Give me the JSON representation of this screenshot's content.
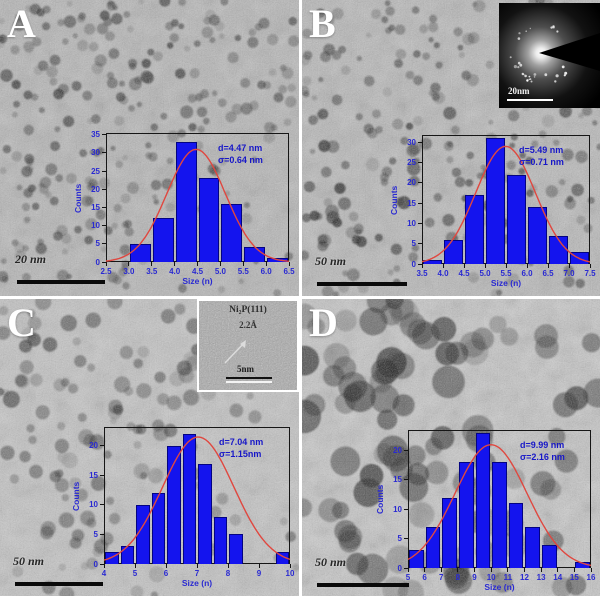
{
  "figure": {
    "colors": {
      "bar_fill": "#1414ee",
      "fit_curve": "#e0473f",
      "axis_text": "#2a2ad2",
      "annotation_text": "#1717c8",
      "axis_line": "#161616",
      "scale_bar": "#0a0a0a"
    },
    "panels": [
      {
        "id": "A",
        "label": "A",
        "scale_bar_label": "20 nm"
      },
      {
        "id": "B",
        "label": "B",
        "scale_bar_label": "50 nm",
        "saed_inset": {
          "scale_bar_label": "20nm"
        }
      },
      {
        "id": "C",
        "label": "C",
        "scale_bar_label": "50 nm",
        "hrtem_inset": {
          "phase_label": "Ni₂P(111)",
          "spacing_label": "2.2Å",
          "scale_bar_label": "5nm"
        }
      },
      {
        "id": "D",
        "label": "D",
        "scale_bar_label": "50 nm"
      }
    ]
  },
  "chart_data": [
    {
      "panel": "A",
      "type": "bar",
      "title": "",
      "xlabel": "Size (n)",
      "ylabel": "Counts",
      "xlim": [
        2.5,
        6.5
      ],
      "ylim": [
        0,
        35.5
      ],
      "xticks": [
        2.5,
        3.0,
        3.5,
        4.0,
        4.5,
        5.0,
        5.5,
        6.0,
        6.5
      ],
      "xtick_labels": [
        "2.5",
        "3.0",
        "3.5",
        "4.0",
        "4.5",
        "5.0",
        "5.5",
        "6.0",
        "6.5"
      ],
      "yticks": [
        0,
        5,
        10,
        15,
        20,
        25,
        30,
        35
      ],
      "bin_width": 0.5,
      "bars": [
        [
          3.0,
          5
        ],
        [
          3.5,
          12
        ],
        [
          4.0,
          33
        ],
        [
          4.5,
          23
        ],
        [
          5.0,
          16
        ],
        [
          5.5,
          4
        ],
        [
          6.0,
          1
        ]
      ],
      "fit": {
        "mean": 4.47,
        "sigma": 0.64,
        "peak": 31
      },
      "annotation": [
        "d=4.47 nm",
        "σ=0.64 nm"
      ],
      "grid": false,
      "legend": "none"
    },
    {
      "panel": "B",
      "type": "bar",
      "title": "",
      "xlabel": "Size (n)",
      "ylabel": "Counts",
      "xlim": [
        3.5,
        7.5
      ],
      "ylim": [
        0,
        31.8
      ],
      "xticks": [
        3.5,
        4.0,
        4.5,
        5.0,
        5.5,
        6.0,
        6.5,
        7.0,
        7.5
      ],
      "xtick_labels": [
        "3.5",
        "4.0",
        "4.5",
        "5.0",
        "5.5",
        "6.0",
        "6.5",
        "7.0",
        "7.5"
      ],
      "yticks": [
        0,
        5,
        10,
        15,
        20,
        25,
        30
      ],
      "bin_width": 0.5,
      "bars": [
        [
          3.5,
          1
        ],
        [
          4.0,
          6
        ],
        [
          4.5,
          17
        ],
        [
          5.0,
          31
        ],
        [
          5.5,
          22
        ],
        [
          6.0,
          14
        ],
        [
          6.5,
          7
        ],
        [
          7.0,
          3
        ]
      ],
      "fit": {
        "mean": 5.49,
        "sigma": 0.71,
        "peak": 29
      },
      "annotation": [
        "d=5.49 nm",
        "σ=0.71 nm"
      ],
      "grid": false,
      "legend": "none"
    },
    {
      "panel": "C",
      "type": "bar",
      "title": "",
      "xlabel": "Size (n)",
      "ylabel": "Counts",
      "xlim": [
        4,
        10
      ],
      "ylim": [
        0,
        23.2
      ],
      "xticks": [
        4,
        5,
        6,
        7,
        8,
        9,
        10
      ],
      "xtick_labels": [
        "4",
        "5",
        "6",
        "7",
        "8",
        "9",
        "10"
      ],
      "yticks": [
        0,
        5,
        10,
        15,
        20
      ],
      "bin_width": 0.5,
      "bars": [
        [
          4.0,
          2
        ],
        [
          4.5,
          3
        ],
        [
          5.0,
          10
        ],
        [
          5.5,
          12
        ],
        [
          6.0,
          20
        ],
        [
          6.5,
          22
        ],
        [
          7.0,
          17
        ],
        [
          7.5,
          8
        ],
        [
          8.0,
          5
        ],
        [
          9.5,
          2
        ]
      ],
      "fit": {
        "mean": 7.04,
        "sigma": 1.15,
        "peak": 21.5
      },
      "annotation": [
        "d=7.04 nm",
        "σ=1.15nm"
      ],
      "grid": false,
      "legend": "none"
    },
    {
      "panel": "D",
      "type": "bar",
      "title": "",
      "xlabel": "Size (n)",
      "ylabel": "Counts",
      "xlim": [
        5,
        16
      ],
      "ylim": [
        0,
        23.5
      ],
      "xticks": [
        5,
        6,
        7,
        8,
        9,
        10,
        11,
        12,
        13,
        14,
        15,
        16
      ],
      "xtick_labels": [
        "5",
        "6",
        "7",
        "8",
        "9",
        "10",
        "11",
        "12",
        "13",
        "14",
        "15",
        "16"
      ],
      "yticks": [
        0,
        5,
        10,
        15,
        20
      ],
      "bin_width": 1,
      "bars": [
        [
          5,
          3
        ],
        [
          6,
          7
        ],
        [
          7,
          12
        ],
        [
          8,
          18
        ],
        [
          9,
          23
        ],
        [
          10,
          18
        ],
        [
          11,
          11
        ],
        [
          12,
          7
        ],
        [
          13,
          4
        ],
        [
          15,
          1
        ]
      ],
      "fit": {
        "mean": 9.99,
        "sigma": 2.16,
        "peak": 21
      },
      "annotation": [
        "d=9.99 nm",
        "σ=2.16 nm"
      ],
      "grid": false,
      "legend": "none"
    }
  ]
}
